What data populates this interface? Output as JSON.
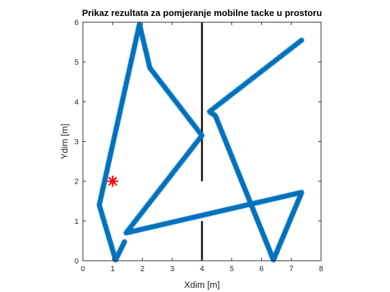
{
  "chart_data": {
    "type": "line",
    "title": "Prikaz rezultata za pomjeranje mobilne tacke u prostoru",
    "xlabel": "Xdim [m]",
    "ylabel": "Ydim [m]",
    "xlim": [
      0,
      8
    ],
    "ylim": [
      0,
      6
    ],
    "xticks": [
      "0",
      "1",
      "2",
      "3",
      "4",
      "5",
      "6",
      "7",
      "8"
    ],
    "yticks": [
      "0",
      "1",
      "2",
      "3",
      "4",
      "5",
      "6"
    ],
    "grid": false,
    "series": [
      {
        "color": "#0072BD",
        "marker": "*",
        "x": [
          1.4,
          1.1,
          0.55,
          1.9,
          2.25,
          4.0,
          1.45,
          7.35,
          6.4,
          4.45,
          4.25,
          7.35
        ],
        "y": [
          0.48,
          0.02,
          1.4,
          5.95,
          4.85,
          3.15,
          0.7,
          1.72,
          0.02,
          3.65,
          3.75,
          5.55
        ]
      }
    ],
    "obstacles": [
      {
        "color": "#000000",
        "x": [
          4.0,
          4.0
        ],
        "y": [
          2.0,
          6.0
        ]
      },
      {
        "color": "#000000",
        "x": [
          4.0,
          4.0
        ],
        "y": [
          0.0,
          1.0
        ]
      }
    ],
    "target": {
      "color": "#FF0000",
      "marker": "*",
      "x": 1.0,
      "y": 2.0
    }
  }
}
